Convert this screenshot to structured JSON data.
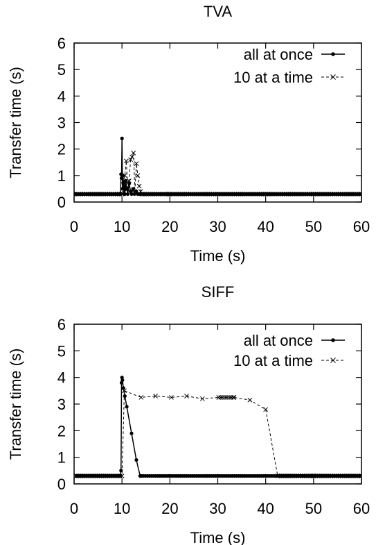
{
  "chart_data": [
    {
      "type": "line",
      "title": "TVA",
      "xlabel": "Time (s)",
      "ylabel": "Transfer time (s)",
      "xlim": [
        0,
        60
      ],
      "ylim": [
        0,
        6
      ],
      "xticks": [
        0,
        10,
        20,
        30,
        40,
        50,
        60
      ],
      "yticks": [
        0,
        1,
        2,
        3,
        4,
        5,
        6
      ],
      "grid": false,
      "legend_position": "top-right",
      "series": [
        {
          "name": "all at once",
          "marker": "dot",
          "style": "solid",
          "x": [
            0,
            9.7,
            9.8,
            9.9,
            10.0,
            10.1,
            10.2,
            10.3,
            10.4,
            10.5,
            10.6,
            10.8,
            11.0,
            11.2,
            11.5,
            11.8,
            12.0,
            12.3,
            12.6,
            13.0,
            13.3,
            13.6,
            14.0,
            20,
            30,
            40,
            50,
            60
          ],
          "y": [
            0.3,
            0.3,
            1.05,
            0.9,
            2.4,
            0.5,
            1.0,
            0.7,
            0.3,
            0.6,
            0.3,
            0.8,
            0.5,
            0.3,
            0.7,
            0.4,
            0.3,
            0.5,
            0.3,
            0.4,
            0.3,
            0.3,
            0.3,
            0.3,
            0.3,
            0.3,
            0.3,
            0.3
          ]
        },
        {
          "name": "10 at a time",
          "marker": "cross",
          "style": "dashed",
          "x": [
            0,
            10.0,
            10.3,
            10.6,
            10.9,
            11.2,
            11.5,
            11.8,
            12.1,
            12.4,
            12.7,
            13.0,
            13.3,
            13.6,
            13.9,
            14.2,
            20,
            30,
            40,
            50,
            60
          ],
          "y": [
            0.3,
            0.3,
            0.8,
            1.0,
            1.55,
            0.5,
            0.8,
            1.6,
            1.7,
            1.85,
            0.4,
            1.45,
            1.0,
            0.6,
            0.4,
            0.3,
            0.3,
            0.3,
            0.3,
            0.3,
            0.3
          ]
        }
      ]
    },
    {
      "type": "line",
      "title": "SIFF",
      "xlabel": "Time (s)",
      "ylabel": "Transfer time (s)",
      "xlim": [
        0,
        60
      ],
      "ylim": [
        0,
        6
      ],
      "xticks": [
        0,
        10,
        20,
        30,
        40,
        50,
        60
      ],
      "yticks": [
        0,
        1,
        2,
        3,
        4,
        5,
        6
      ],
      "grid": false,
      "legend_position": "top-right",
      "series": [
        {
          "name": "all at once",
          "marker": "dot",
          "style": "solid",
          "x": [
            0.5,
            9.6,
            9.8,
            9.9,
            10.0,
            10.1,
            10.3,
            10.6,
            11.0,
            12.0,
            13.0,
            13.8,
            14.0,
            20,
            30,
            40,
            50,
            60
          ],
          "y": [
            0.3,
            0.3,
            0.5,
            3.8,
            4.0,
            3.9,
            3.6,
            3.3,
            2.9,
            1.9,
            0.9,
            0.3,
            0.3,
            0.3,
            0.3,
            0.3,
            0.3,
            0.3
          ]
        },
        {
          "name": "10 at a time",
          "marker": "cross",
          "style": "dashed",
          "x": [
            0.5,
            9.6,
            10.0,
            10.5,
            14.0,
            17.0,
            20.3,
            23.5,
            26.8,
            30.2,
            33.4,
            36.7,
            40.0,
            42.5,
            50,
            60
          ],
          "y": [
            0.3,
            0.3,
            0.3,
            3.5,
            3.25,
            3.3,
            3.25,
            3.3,
            3.2,
            3.25,
            3.25,
            3.15,
            2.8,
            0.3,
            0.3,
            0.3
          ]
        }
      ]
    }
  ]
}
